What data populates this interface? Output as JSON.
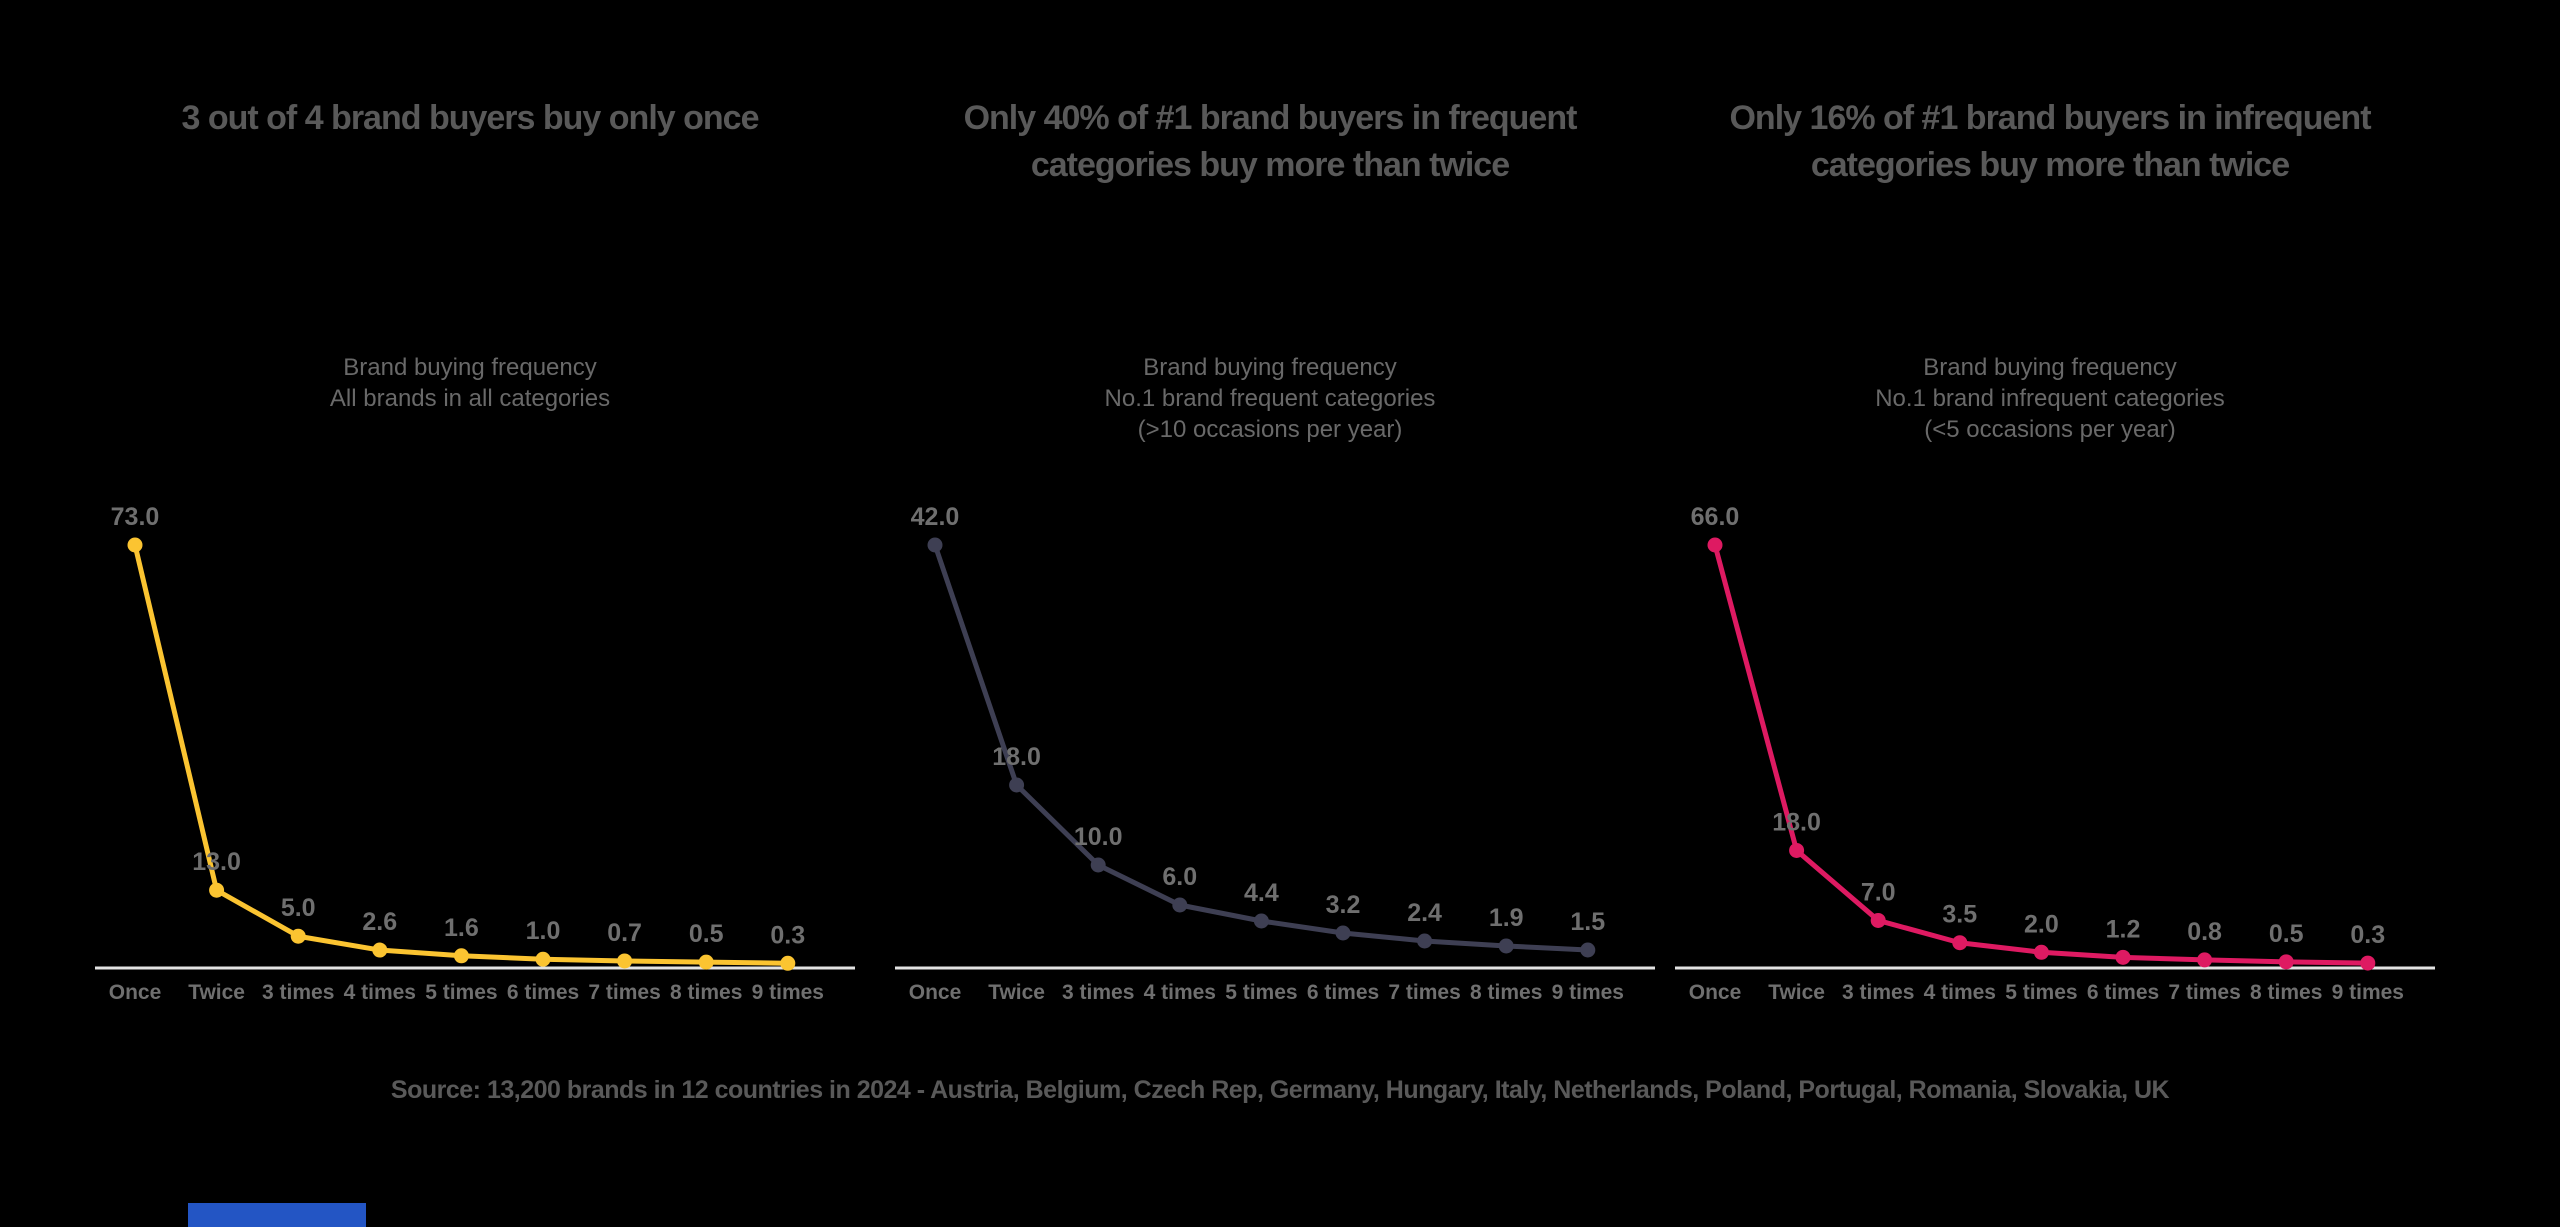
{
  "page": {
    "background_color": "#000000",
    "title_color": "#595959",
    "subtitle_color": "#696969",
    "label_color": "#6F6F6F",
    "axis_color": "#E3E3E3",
    "footer_bar_color": "#2355C4"
  },
  "source_note": "Source: 13,200 brands in 12 countries in 2024 - Austria, Belgium, Czech Rep, Germany, Hungary, Italy, Netherlands, Poland, Portugal, Romania, Slovakia, UK",
  "chart_data": [
    {
      "type": "line",
      "title": "3 out of 4 brand buyers buy only once",
      "title_lines": [
        "3 out of 4 brand buyers buy only once"
      ],
      "subtitle_lines": [
        "Brand buying frequency",
        "All brands in all categories"
      ],
      "categories": [
        "Once",
        "Twice",
        "3 times",
        "4 times",
        "5 times",
        "6 times",
        "7 times",
        "8 times",
        "9 times"
      ],
      "values": [
        73.0,
        13.0,
        5.0,
        2.6,
        1.6,
        1.0,
        0.7,
        0.5,
        0.3
      ],
      "point_labels": [
        "73.0",
        "13.0",
        "5.0",
        "2.6",
        "1.6",
        "1.0",
        "0.7",
        "0.5",
        "0.3"
      ],
      "line_color": "#FBC431",
      "xlabel": "",
      "ylabel": "",
      "ylim": [
        0,
        73
      ],
      "grid": false,
      "legend": "none"
    },
    {
      "type": "line",
      "title": "Only 40% of #1 brand buyers in frequent categories buy more than twice",
      "title_lines": [
        "Only 40% of #1 brand buyers in frequent",
        "categories buy more than twice"
      ],
      "subtitle_lines": [
        "Brand buying frequency",
        "No.1 brand frequent categories",
        "(>10 occasions per year)"
      ],
      "categories": [
        "Once",
        "Twice",
        "3 times",
        "4 times",
        "5 times",
        "6 times",
        "7 times",
        "8 times",
        "9 times"
      ],
      "values": [
        42.0,
        18.0,
        10.0,
        6.0,
        4.4,
        3.2,
        2.4,
        1.9,
        1.5
      ],
      "point_labels": [
        "42.0",
        "18.0",
        "10.0",
        "6.0",
        "4.4",
        "3.2",
        "2.4",
        "1.9",
        "1.5"
      ],
      "line_color": "#3E3F53",
      "xlabel": "",
      "ylabel": "",
      "ylim": [
        0,
        42
      ],
      "grid": false,
      "legend": "none"
    },
    {
      "type": "line",
      "title": "Only 16% of #1 brand buyers in infrequent categories buy more than twice",
      "title_lines": [
        "Only 16% of #1 brand buyers in infrequent",
        "categories buy more than twice"
      ],
      "subtitle_lines": [
        "Brand buying frequency",
        "No.1 brand infrequent categories",
        "(<5 occasions per year)"
      ],
      "categories": [
        "Once",
        "Twice",
        "3 times",
        "4 times",
        "5 times",
        "6 times",
        "7 times",
        "8 times",
        "9 times"
      ],
      "values": [
        66.0,
        18.0,
        7.0,
        3.5,
        2.0,
        1.2,
        0.8,
        0.5,
        0.3
      ],
      "point_labels": [
        "66.0",
        "18.0",
        "7.0",
        "3.5",
        "2.0",
        "1.2",
        "0.8",
        "0.5",
        "0.3"
      ],
      "line_color": "#DE1A62",
      "xlabel": "",
      "ylabel": "",
      "ylim": [
        0,
        66
      ],
      "grid": false,
      "legend": "none"
    }
  ]
}
